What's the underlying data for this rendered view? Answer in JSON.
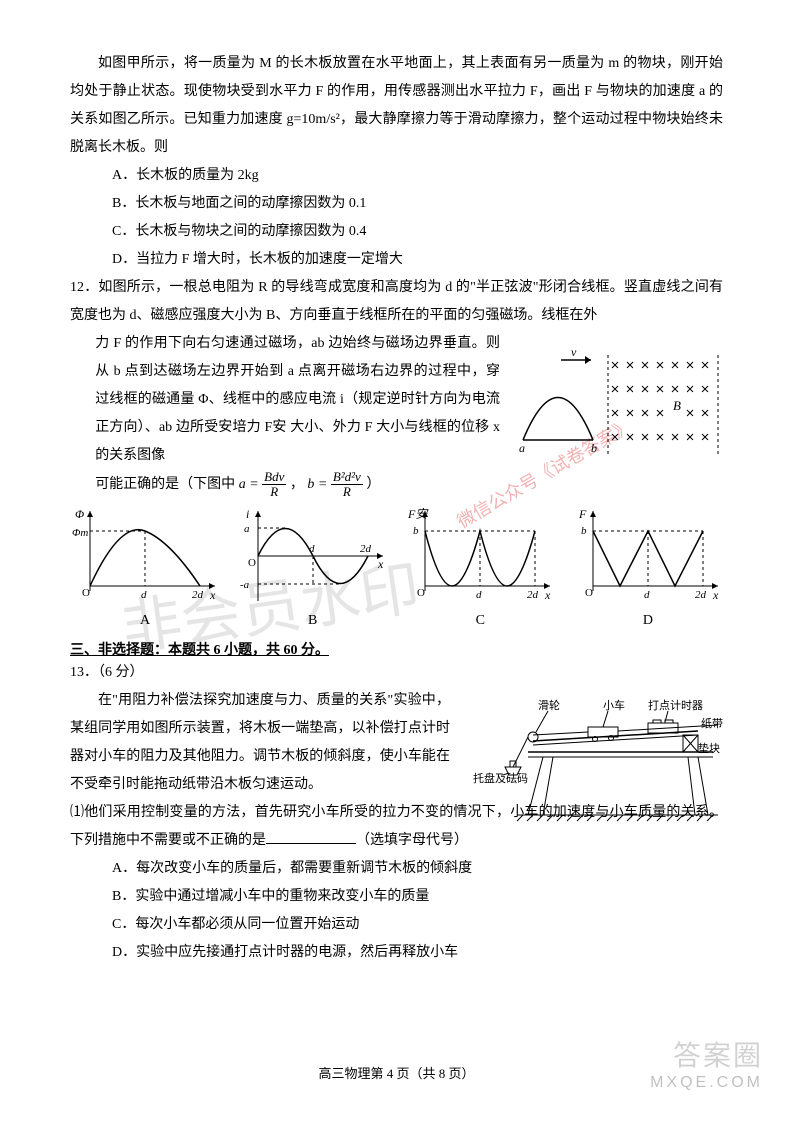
{
  "q11": {
    "stem1": "如图甲所示，将一质量为 M 的长木板放置在水平地面上，其上表面有另一质量为 m 的物块，刚开始均处于静止状态。现使物块受到水平力 F 的作用，用传感器测出水平拉力 F，画出 F 与物块的加速度 a 的关系如图乙所示。已知重力加速度 g=10m/s²，最大静摩擦力等于滑动摩擦力，整个运动过程中物块始终未脱离长木板。则",
    "A": "A．长木板的质量为 2kg",
    "B": "B．长木板与地面之间的动摩擦因数为 0.1",
    "C": "C．长木板与物块之间的动摩擦因数为 0.4",
    "D": "D．当拉力 F 增大时，长木板的加速度一定增大"
  },
  "q12": {
    "num": "12．",
    "stem1": "如图所示，一根总电阻为 R 的导线弯成宽度和高度均为 d 的\"半正弦波\"形闭合线框。竖直虚线之间有宽度也为 d、磁感应强度大小为 B、方向垂直于线框所在的平面的匀强磁场。线框在外",
    "stem2": "力 F 的作用下向右匀速通过磁场，ab 边始终与磁场边界垂直。则从 b 点到达磁场左边界开始到 a 点离开磁场右边界的过程中，穿过线框的磁通量 Φ、线框中的感应电流 i（规定逆时针方向为电流正方向）、ab 边所受安培力 F安 大小、外力 F 大小与线框的位移 x 的关系图像",
    "stem3pre": "可能正确的是（下图中",
    "stem3post": "）",
    "field": {
      "a_label": "a",
      "b_label": "b",
      "v_label": "v",
      "B_label": "B",
      "nrows": 4,
      "ncols": 7,
      "region_color": "#000"
    },
    "graphs": {
      "A": {
        "ylabel": "Φ",
        "y_mark": "Φm",
        "x_marks": [
          "d",
          "2d"
        ],
        "xlabel": "x",
        "type": "phi"
      },
      "B": {
        "ylabel": "i",
        "y_mark_top": "a",
        "y_mark_bot": "-a",
        "x_marks": [
          "d",
          "2d"
        ],
        "xlabel": "x",
        "type": "sine"
      },
      "C": {
        "ylabel": "F安",
        "y_mark": "b",
        "x_marks": [
          "d",
          "2d"
        ],
        "xlabel": "x",
        "type": "cusps"
      },
      "D": {
        "ylabel": "F",
        "y_mark": "b",
        "x_marks": [
          "d",
          "2d"
        ],
        "xlabel": "x",
        "type": "cusps"
      }
    },
    "labels": {
      "A": "A",
      "B": "B",
      "C": "C",
      "D": "D"
    },
    "formula_a": {
      "num": "Bdv",
      "den": "R",
      "lhs": "a ="
    },
    "formula_b": {
      "num": "B²d²v",
      "den": "R",
      "lhs": "b ="
    }
  },
  "section3": "三、非选择题：本题共 6 小题，共 60 分。",
  "q13": {
    "num": "13．（6 分）",
    "stem1": "在\"用阻力补偿法探究加速度与力、质量的关系\"实验中，某组同学用如图所示装置，将木板一端垫高，以补偿打点计时器对小车的阻力及其他阻力。调节木板的倾斜度，使小车能在不受牵引时能拖动纸带沿木板匀速运动。",
    "sub1": "⑴他们采用控制变量的方法，首先研究小车所受的拉力不变的情况下，小车的加速度与小车质量的关系。下列措施中不需要或不正确的是",
    "sub1_tail": "（选填字母代号）",
    "A": "A．每次改变小车的质量后，都需要重新调节木板的倾斜度",
    "B": "B．实验中通过增减小车中的重物来改变小车的质量",
    "C": "C．每次小车都必须从同一位置开始运动",
    "D": "D．实验中应先接通打点计时器的电源，然后再释放小车",
    "apparatus": {
      "labels": {
        "pulley": "滑轮",
        "car": "小车",
        "timer": "打点计时器",
        "tape": "纸带",
        "block": "垫块",
        "tray": "托盘及砝码"
      }
    }
  },
  "footer": "高三物理第 4 页（共 8 页）",
  "wm1": "非会员水印",
  "wm2": "微信公众号《试卷答案》",
  "bwm1": "答案圈",
  "bwm2": "MXQE.COM",
  "style": {
    "axis_color": "#000000",
    "graph_stroke": "#000000",
    "dash": "3,3"
  }
}
